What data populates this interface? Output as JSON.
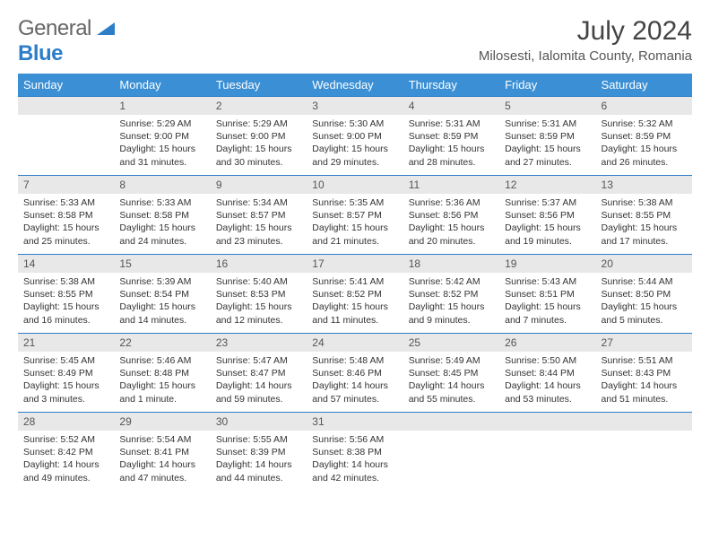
{
  "logo": {
    "general": "General",
    "blue": "Blue"
  },
  "title": "July 2024",
  "location": "Milosesti, Ialomita County, Romania",
  "colors": {
    "header_bg": "#3b8fd4",
    "border": "#2d7dc8",
    "daynum_bg": "#e8e8e8",
    "logo_blue": "#2d7dc8"
  },
  "weekdays": [
    "Sunday",
    "Monday",
    "Tuesday",
    "Wednesday",
    "Thursday",
    "Friday",
    "Saturday"
  ],
  "weeks": [
    [
      null,
      {
        "n": "1",
        "sr": "Sunrise: 5:29 AM",
        "ss": "Sunset: 9:00 PM",
        "dl": "Daylight: 15 hours and 31 minutes."
      },
      {
        "n": "2",
        "sr": "Sunrise: 5:29 AM",
        "ss": "Sunset: 9:00 PM",
        "dl": "Daylight: 15 hours and 30 minutes."
      },
      {
        "n": "3",
        "sr": "Sunrise: 5:30 AM",
        "ss": "Sunset: 9:00 PM",
        "dl": "Daylight: 15 hours and 29 minutes."
      },
      {
        "n": "4",
        "sr": "Sunrise: 5:31 AM",
        "ss": "Sunset: 8:59 PM",
        "dl": "Daylight: 15 hours and 28 minutes."
      },
      {
        "n": "5",
        "sr": "Sunrise: 5:31 AM",
        "ss": "Sunset: 8:59 PM",
        "dl": "Daylight: 15 hours and 27 minutes."
      },
      {
        "n": "6",
        "sr": "Sunrise: 5:32 AM",
        "ss": "Sunset: 8:59 PM",
        "dl": "Daylight: 15 hours and 26 minutes."
      }
    ],
    [
      {
        "n": "7",
        "sr": "Sunrise: 5:33 AM",
        "ss": "Sunset: 8:58 PM",
        "dl": "Daylight: 15 hours and 25 minutes."
      },
      {
        "n": "8",
        "sr": "Sunrise: 5:33 AM",
        "ss": "Sunset: 8:58 PM",
        "dl": "Daylight: 15 hours and 24 minutes."
      },
      {
        "n": "9",
        "sr": "Sunrise: 5:34 AM",
        "ss": "Sunset: 8:57 PM",
        "dl": "Daylight: 15 hours and 23 minutes."
      },
      {
        "n": "10",
        "sr": "Sunrise: 5:35 AM",
        "ss": "Sunset: 8:57 PM",
        "dl": "Daylight: 15 hours and 21 minutes."
      },
      {
        "n": "11",
        "sr": "Sunrise: 5:36 AM",
        "ss": "Sunset: 8:56 PM",
        "dl": "Daylight: 15 hours and 20 minutes."
      },
      {
        "n": "12",
        "sr": "Sunrise: 5:37 AM",
        "ss": "Sunset: 8:56 PM",
        "dl": "Daylight: 15 hours and 19 minutes."
      },
      {
        "n": "13",
        "sr": "Sunrise: 5:38 AM",
        "ss": "Sunset: 8:55 PM",
        "dl": "Daylight: 15 hours and 17 minutes."
      }
    ],
    [
      {
        "n": "14",
        "sr": "Sunrise: 5:38 AM",
        "ss": "Sunset: 8:55 PM",
        "dl": "Daylight: 15 hours and 16 minutes."
      },
      {
        "n": "15",
        "sr": "Sunrise: 5:39 AM",
        "ss": "Sunset: 8:54 PM",
        "dl": "Daylight: 15 hours and 14 minutes."
      },
      {
        "n": "16",
        "sr": "Sunrise: 5:40 AM",
        "ss": "Sunset: 8:53 PM",
        "dl": "Daylight: 15 hours and 12 minutes."
      },
      {
        "n": "17",
        "sr": "Sunrise: 5:41 AM",
        "ss": "Sunset: 8:52 PM",
        "dl": "Daylight: 15 hours and 11 minutes."
      },
      {
        "n": "18",
        "sr": "Sunrise: 5:42 AM",
        "ss": "Sunset: 8:52 PM",
        "dl": "Daylight: 15 hours and 9 minutes."
      },
      {
        "n": "19",
        "sr": "Sunrise: 5:43 AM",
        "ss": "Sunset: 8:51 PM",
        "dl": "Daylight: 15 hours and 7 minutes."
      },
      {
        "n": "20",
        "sr": "Sunrise: 5:44 AM",
        "ss": "Sunset: 8:50 PM",
        "dl": "Daylight: 15 hours and 5 minutes."
      }
    ],
    [
      {
        "n": "21",
        "sr": "Sunrise: 5:45 AM",
        "ss": "Sunset: 8:49 PM",
        "dl": "Daylight: 15 hours and 3 minutes."
      },
      {
        "n": "22",
        "sr": "Sunrise: 5:46 AM",
        "ss": "Sunset: 8:48 PM",
        "dl": "Daylight: 15 hours and 1 minute."
      },
      {
        "n": "23",
        "sr": "Sunrise: 5:47 AM",
        "ss": "Sunset: 8:47 PM",
        "dl": "Daylight: 14 hours and 59 minutes."
      },
      {
        "n": "24",
        "sr": "Sunrise: 5:48 AM",
        "ss": "Sunset: 8:46 PM",
        "dl": "Daylight: 14 hours and 57 minutes."
      },
      {
        "n": "25",
        "sr": "Sunrise: 5:49 AM",
        "ss": "Sunset: 8:45 PM",
        "dl": "Daylight: 14 hours and 55 minutes."
      },
      {
        "n": "26",
        "sr": "Sunrise: 5:50 AM",
        "ss": "Sunset: 8:44 PM",
        "dl": "Daylight: 14 hours and 53 minutes."
      },
      {
        "n": "27",
        "sr": "Sunrise: 5:51 AM",
        "ss": "Sunset: 8:43 PM",
        "dl": "Daylight: 14 hours and 51 minutes."
      }
    ],
    [
      {
        "n": "28",
        "sr": "Sunrise: 5:52 AM",
        "ss": "Sunset: 8:42 PM",
        "dl": "Daylight: 14 hours and 49 minutes."
      },
      {
        "n": "29",
        "sr": "Sunrise: 5:54 AM",
        "ss": "Sunset: 8:41 PM",
        "dl": "Daylight: 14 hours and 47 minutes."
      },
      {
        "n": "30",
        "sr": "Sunrise: 5:55 AM",
        "ss": "Sunset: 8:39 PM",
        "dl": "Daylight: 14 hours and 44 minutes."
      },
      {
        "n": "31",
        "sr": "Sunrise: 5:56 AM",
        "ss": "Sunset: 8:38 PM",
        "dl": "Daylight: 14 hours and 42 minutes."
      },
      null,
      null,
      null
    ]
  ]
}
